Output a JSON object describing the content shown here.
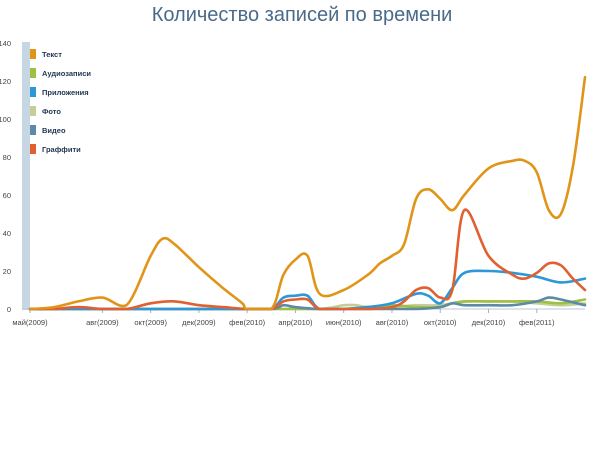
{
  "chart_data": {
    "type": "line",
    "title": "Количество записей по времени",
    "xlabel": "",
    "ylabel": "",
    "ylim": [
      0,
      140
    ],
    "yticks": [
      0,
      20,
      40,
      60,
      80,
      100,
      120,
      140
    ],
    "grid": false,
    "legend_position": "top-left",
    "x_tick_labels": [
      "май(2009)",
      "авг(2009)",
      "окт(2009)",
      "дек(2009)",
      "фев(2010)",
      "апр(2010)",
      "июн(2010)",
      "авг(2010)",
      "окт(2010)",
      "дек(2010)",
      "фев(2011)"
    ],
    "x_tick_positions": [
      0,
      3,
      5,
      7,
      9,
      11,
      13,
      15,
      17,
      19,
      21
    ],
    "x_range": [
      0,
      23
    ],
    "series": [
      {
        "name": "Текст",
        "color": "#e09418",
        "x": [
          0,
          1,
          2,
          3,
          4,
          5,
          5.5,
          6,
          7,
          8,
          8.8,
          9,
          10,
          10.5,
          11,
          11.5,
          12,
          13,
          14,
          14.5,
          15,
          15.5,
          16,
          16.5,
          17,
          17.5,
          18,
          19,
          20,
          20.5,
          21,
          21.5,
          22,
          22.5,
          23
        ],
        "y": [
          0,
          1,
          4,
          6,
          2,
          28,
          37,
          34,
          22,
          11,
          3,
          0,
          0,
          18,
          26,
          28,
          8,
          10,
          18,
          24,
          28,
          34,
          58,
          63,
          58,
          52,
          60,
          74,
          78,
          78,
          72,
          52,
          50,
          75,
          122
        ]
      },
      {
        "name": "Аудиозаписи",
        "color": "#9ec044",
        "x": [
          0,
          4,
          8,
          12,
          13,
          14,
          15,
          16,
          17,
          17.5,
          18,
          19,
          20,
          21,
          22,
          23
        ],
        "y": [
          0,
          0,
          0,
          0,
          0,
          1,
          2,
          1,
          1,
          3,
          4,
          4,
          4,
          4,
          3,
          5
        ]
      },
      {
        "name": "Приложения",
        "color": "#2e97d8",
        "x": [
          0,
          4,
          9,
          10,
          10.5,
          11,
          11.5,
          12,
          13,
          14,
          15,
          16,
          16.5,
          17,
          17.5,
          18,
          19,
          20,
          21,
          22,
          23
        ],
        "y": [
          0,
          0,
          0,
          0,
          6,
          7,
          7,
          0,
          0,
          1,
          3,
          8,
          7,
          3,
          11,
          19,
          20,
          19,
          17,
          14,
          16
        ]
      },
      {
        "name": "Фото",
        "color": "#c4ce96",
        "x": [
          0,
          2,
          4,
          5,
          6,
          8,
          10,
          12,
          13,
          13.5,
          14,
          15,
          16,
          17,
          18,
          19,
          20,
          21,
          22,
          23
        ],
        "y": [
          0,
          0,
          0,
          0,
          0,
          0,
          0,
          0,
          2,
          2,
          1,
          1,
          2,
          2,
          4,
          4,
          4,
          3,
          2,
          3
        ]
      },
      {
        "name": "Видео",
        "color": "#5d8aa6",
        "x": [
          0,
          4,
          8,
          10,
          10.5,
          11,
          12,
          13,
          14,
          15,
          16,
          17,
          17.5,
          18,
          19,
          20,
          21,
          21.5,
          22,
          23
        ],
        "y": [
          0,
          0,
          0,
          0,
          2,
          1,
          0,
          0,
          0,
          0,
          0,
          1,
          3,
          2,
          2,
          2,
          4,
          6,
          5,
          2
        ]
      },
      {
        "name": "Граффити",
        "color": "#e06030",
        "x": [
          0,
          1,
          2,
          3,
          4,
          5,
          6,
          7,
          8,
          9,
          10,
          10.5,
          11,
          11.5,
          12,
          13,
          14,
          15,
          15.5,
          16,
          16.5,
          17,
          17.5,
          18,
          19,
          20,
          20.5,
          21,
          21.5,
          22,
          22.5,
          23
        ],
        "y": [
          0,
          0,
          1,
          0,
          0,
          3,
          4,
          2,
          1,
          0,
          0,
          4,
          5,
          5,
          0,
          0,
          0,
          1,
          4,
          10,
          11,
          6,
          10,
          52,
          28,
          18,
          16,
          19,
          24,
          23,
          16,
          10
        ]
      }
    ]
  }
}
